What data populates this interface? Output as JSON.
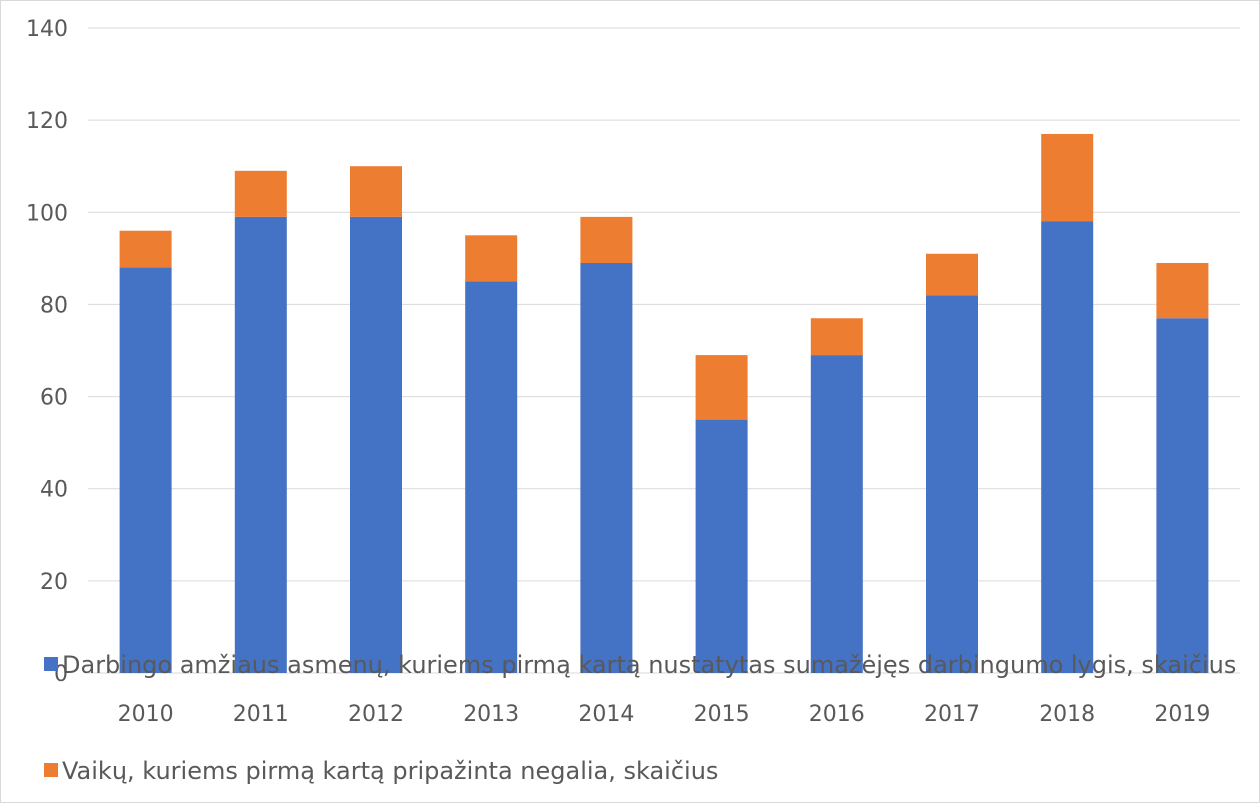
{
  "chart_data": {
    "type": "bar",
    "stacked": true,
    "categories": [
      "2010",
      "2011",
      "2012",
      "2013",
      "2014",
      "2015",
      "2016",
      "2017",
      "2018",
      "2019"
    ],
    "series": [
      {
        "name": "Darbingo amžiaus asmenų, kuriems pirmą kartą nustatytas sumažėjęs darbingumo lygis, skaičius",
        "color": "#4472C4",
        "values": [
          88,
          99,
          99,
          85,
          89,
          55,
          69,
          82,
          98,
          77
        ]
      },
      {
        "name": "Vaikų, kuriems pirmą kartą pripažinta negalia, skaičius",
        "color": "#ED7D31",
        "values": [
          8,
          10,
          11,
          10,
          10,
          14,
          8,
          9,
          19,
          12
        ]
      }
    ],
    "yticks": [
      "0",
      "20",
      "40",
      "60",
      "80",
      "100",
      "120",
      "140"
    ],
    "ylim": [
      0,
      140
    ],
    "grid": true,
    "legend_position": "bottom"
  }
}
